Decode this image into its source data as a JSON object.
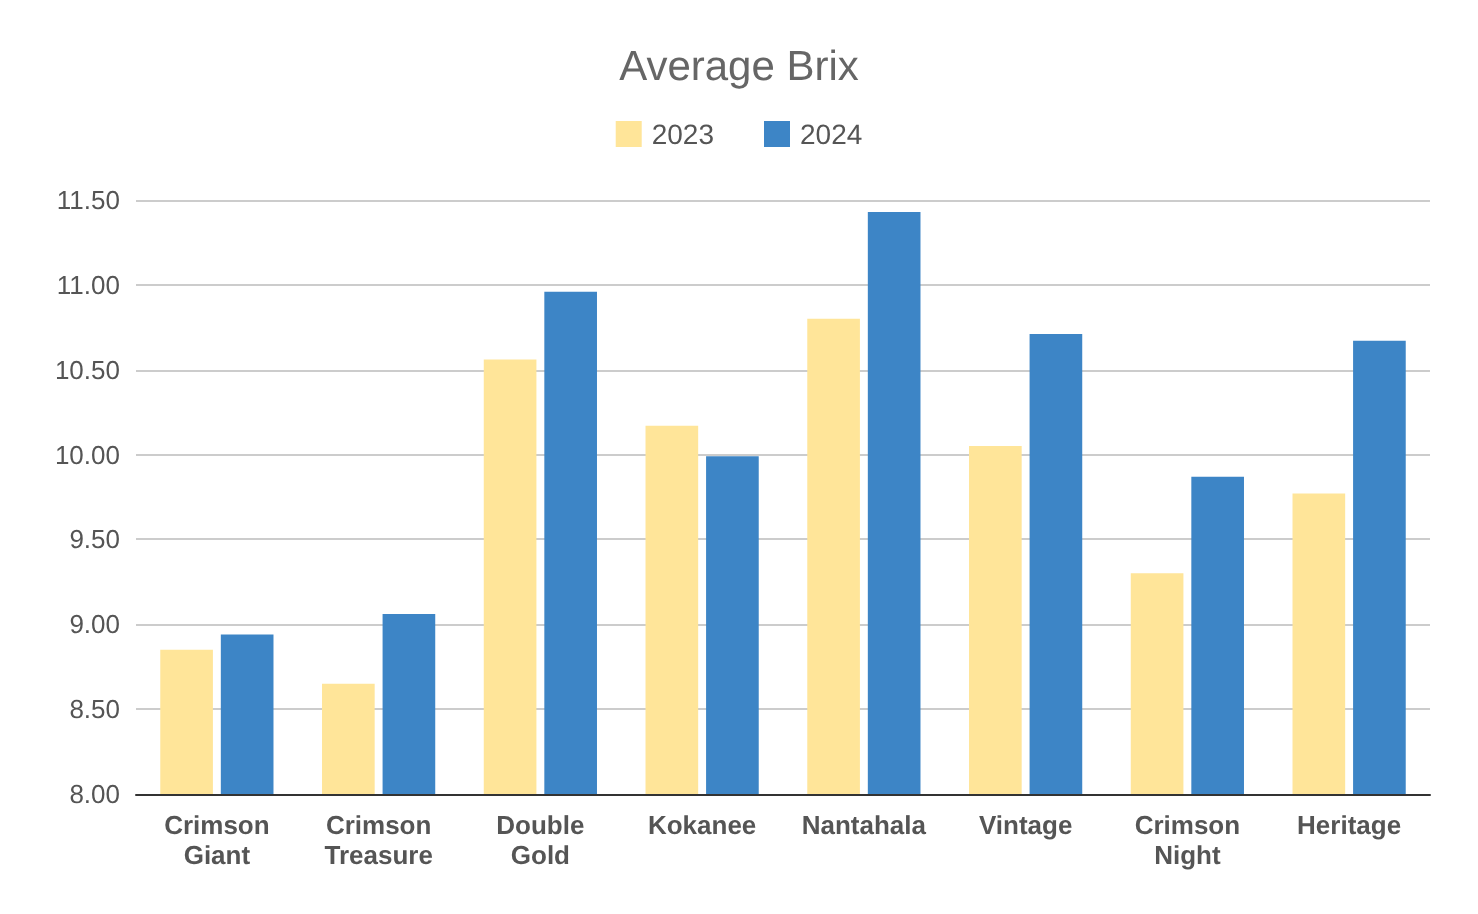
{
  "chart_data": {
    "type": "bar",
    "title": "Average Brix",
    "categories": [
      "Crimson Giant",
      "Crimson Treasure",
      "Double Gold",
      "Kokanee",
      "Nantahala",
      "Vintage",
      "Crimson Night",
      "Heritage"
    ],
    "series": [
      {
        "name": "2023",
        "color": "#ffe599",
        "values": [
          8.85,
          8.65,
          10.56,
          10.17,
          10.8,
          10.05,
          9.3,
          9.77
        ]
      },
      {
        "name": "2024",
        "color": "#3d85c6",
        "values": [
          8.94,
          9.06,
          10.96,
          9.99,
          11.43,
          10.71,
          9.87,
          10.67
        ]
      }
    ],
    "ylim": [
      8,
      11.5
    ],
    "yticks": [
      {
        "value": 8,
        "label": "8.00"
      },
      {
        "value": 8.5,
        "label": "8.50"
      },
      {
        "value": 9,
        "label": "9.00"
      },
      {
        "value": 9.5,
        "label": "9.50"
      },
      {
        "value": 10,
        "label": "10.00"
      },
      {
        "value": 10.5,
        "label": "10.50"
      },
      {
        "value": 11,
        "label": "11.00"
      },
      {
        "value": 11.5,
        "label": "11.50"
      }
    ],
    "grid": "y",
    "legend": "top"
  }
}
